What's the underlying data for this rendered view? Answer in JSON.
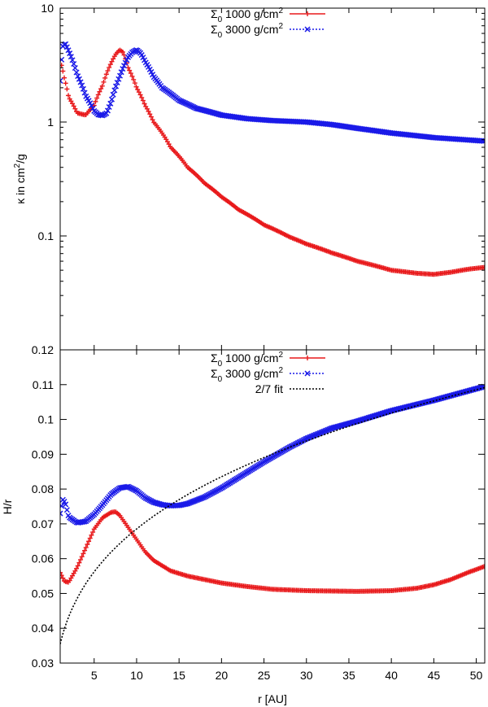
{
  "figure": {
    "xlabel": "r [AU]"
  },
  "chart_data": [
    {
      "type": "line",
      "scale": "log",
      "ylabel": {
        "base": "κ in cm",
        "sup": "2",
        "tail": "/g"
      },
      "xlim": [
        1,
        51
      ],
      "ylim": [
        0.01,
        10
      ],
      "x_ticks": [
        5,
        10,
        15,
        20,
        25,
        30,
        35,
        40,
        45,
        50
      ],
      "y_ticks": [
        {
          "value": 10,
          "label": "10"
        },
        {
          "value": 1,
          "label": "1"
        },
        {
          "value": 0.1,
          "label": "0.1"
        },
        {
          "value": 0.01,
          "label": ""
        }
      ],
      "legend_position": "top-right",
      "series": [
        {
          "name": "Σ0 1000 g/cm2",
          "label": {
            "sym": "Σ",
            "sub": "0",
            "text": " 1000 g/cm",
            "sup": "2"
          },
          "color": "#e8191b",
          "marker": "plus",
          "x": [
            1.0,
            1.5,
            2.0,
            3.0,
            4.0,
            5.0,
            6.0,
            7.0,
            7.5,
            8.0,
            8.4,
            9.0,
            10.0,
            11.0,
            12.0,
            14.0,
            16.0,
            18.0,
            20.0,
            22.0,
            25.0,
            28.0,
            30.0,
            33.0,
            36.0,
            40.0,
            43.0,
            45.0,
            47.0,
            49.0,
            51.0
          ],
          "y": [
            3.5,
            2.4,
            1.65,
            1.2,
            1.15,
            1.4,
            2.1,
            3.3,
            3.9,
            4.3,
            4.1,
            3.0,
            2.0,
            1.4,
            1.0,
            0.6,
            0.4,
            0.29,
            0.22,
            0.17,
            0.125,
            0.098,
            0.085,
            0.071,
            0.06,
            0.05,
            0.047,
            0.046,
            0.048,
            0.051,
            0.053
          ]
        },
        {
          "name": "Σ0 3000 g/cm2",
          "label": {
            "sym": "Σ",
            "sub": "0",
            "text": " 3000 g/cm",
            "sup": "2"
          },
          "color": "#1a1ae8",
          "marker": "cross",
          "x": [
            1.0,
            1.3,
            1.6,
            2.0,
            2.5,
            3.0,
            4.0,
            5.0,
            5.5,
            6.0,
            6.5,
            7.0,
            8.0,
            9.0,
            9.5,
            10.0,
            10.5,
            11.0,
            12.0,
            13.0,
            15.0,
            17.0,
            20.0,
            23.0,
            26.0,
            30.0,
            33.0,
            36.0,
            40.0,
            45.0,
            51.0
          ],
          "y": [
            2.3,
            4.6,
            4.9,
            4.2,
            3.4,
            2.6,
            1.7,
            1.25,
            1.16,
            1.14,
            1.2,
            1.5,
            2.5,
            3.7,
            4.1,
            4.3,
            4.0,
            3.4,
            2.5,
            2.0,
            1.55,
            1.32,
            1.15,
            1.07,
            1.03,
            1.0,
            0.95,
            0.88,
            0.8,
            0.73,
            0.68
          ]
        }
      ]
    },
    {
      "type": "line",
      "scale": "linear",
      "ylabel": {
        "base": "H/r",
        "sup": "",
        "tail": ""
      },
      "xlim": [
        1,
        51
      ],
      "ylim": [
        0.03,
        0.12
      ],
      "x_ticks": [
        5,
        10,
        15,
        20,
        25,
        30,
        35,
        40,
        45,
        50
      ],
      "x_tick_labels": [
        "5",
        "10",
        "15",
        "20",
        "25",
        "30",
        "35",
        "40",
        "45",
        "50"
      ],
      "y_ticks": [
        {
          "value": 0.03,
          "label": "0.03"
        },
        {
          "value": 0.04,
          "label": "0.04"
        },
        {
          "value": 0.05,
          "label": "0.05"
        },
        {
          "value": 0.06,
          "label": "0.06"
        },
        {
          "value": 0.07,
          "label": "0.07"
        },
        {
          "value": 0.08,
          "label": "0.08"
        },
        {
          "value": 0.09,
          "label": "0.09"
        },
        {
          "value": 0.1,
          "label": "0.1"
        },
        {
          "value": 0.11,
          "label": "0.11"
        },
        {
          "value": 0.12,
          "label": "0.12"
        }
      ],
      "legend_position": "top-right",
      "series": [
        {
          "name": "Σ0 1000 g/cm2",
          "label": {
            "sym": "Σ",
            "sub": "0",
            "text": " 1000 g/cm",
            "sup": "2"
          },
          "color": "#e8191b",
          "marker": "plus",
          "x": [
            1.0,
            1.5,
            2.0,
            3.0,
            4.0,
            5.0,
            6.0,
            7.0,
            7.5,
            8.0,
            9.0,
            10.0,
            11.0,
            12.0,
            14.0,
            16.0,
            18.0,
            20.0,
            23.0,
            26.0,
            30.0,
            33.0,
            36.0,
            40.0,
            43.0,
            45.0,
            47.0,
            49.0,
            51.0
          ],
          "y": [
            0.056,
            0.0535,
            0.0532,
            0.0575,
            0.063,
            0.0685,
            0.0718,
            0.0733,
            0.0735,
            0.0725,
            0.069,
            0.0655,
            0.062,
            0.0595,
            0.0565,
            0.055,
            0.054,
            0.053,
            0.052,
            0.0512,
            0.0508,
            0.0507,
            0.0506,
            0.0508,
            0.0515,
            0.0525,
            0.054,
            0.056,
            0.0578
          ]
        },
        {
          "name": "Σ0 3000 g/cm2",
          "label": {
            "sym": "Σ",
            "sub": "0",
            "text": " 3000 g/cm",
            "sup": "2"
          },
          "color": "#1a1ae8",
          "marker": "cross",
          "x": [
            1.0,
            1.3,
            1.6,
            2.0,
            3.0,
            4.0,
            5.0,
            6.0,
            7.0,
            8.0,
            9.0,
            10.0,
            11.0,
            12.0,
            13.0,
            14.0,
            15.0,
            16.0,
            18.0,
            20.0,
            22.0,
            25.0,
            28.0,
            30.0,
            33.0,
            36.0,
            40.0,
            45.0,
            51.0
          ],
          "y": [
            0.073,
            0.077,
            0.076,
            0.072,
            0.0703,
            0.0707,
            0.0727,
            0.0755,
            0.0785,
            0.0803,
            0.0807,
            0.0795,
            0.0775,
            0.0762,
            0.0755,
            0.0752,
            0.0753,
            0.0758,
            0.0777,
            0.0803,
            0.0833,
            0.0878,
            0.092,
            0.0945,
            0.0975,
            0.0995,
            0.1025,
            0.1055,
            0.1095
          ]
        },
        {
          "name": "2/7 fit",
          "label": {
            "sym": "",
            "sub": "",
            "text": "2/7 fit",
            "sup": ""
          },
          "color": "#000000",
          "marker": "none",
          "dash": true,
          "fit": {
            "coef": 0.0355,
            "exponent": 0.2857
          }
        }
      ]
    }
  ]
}
